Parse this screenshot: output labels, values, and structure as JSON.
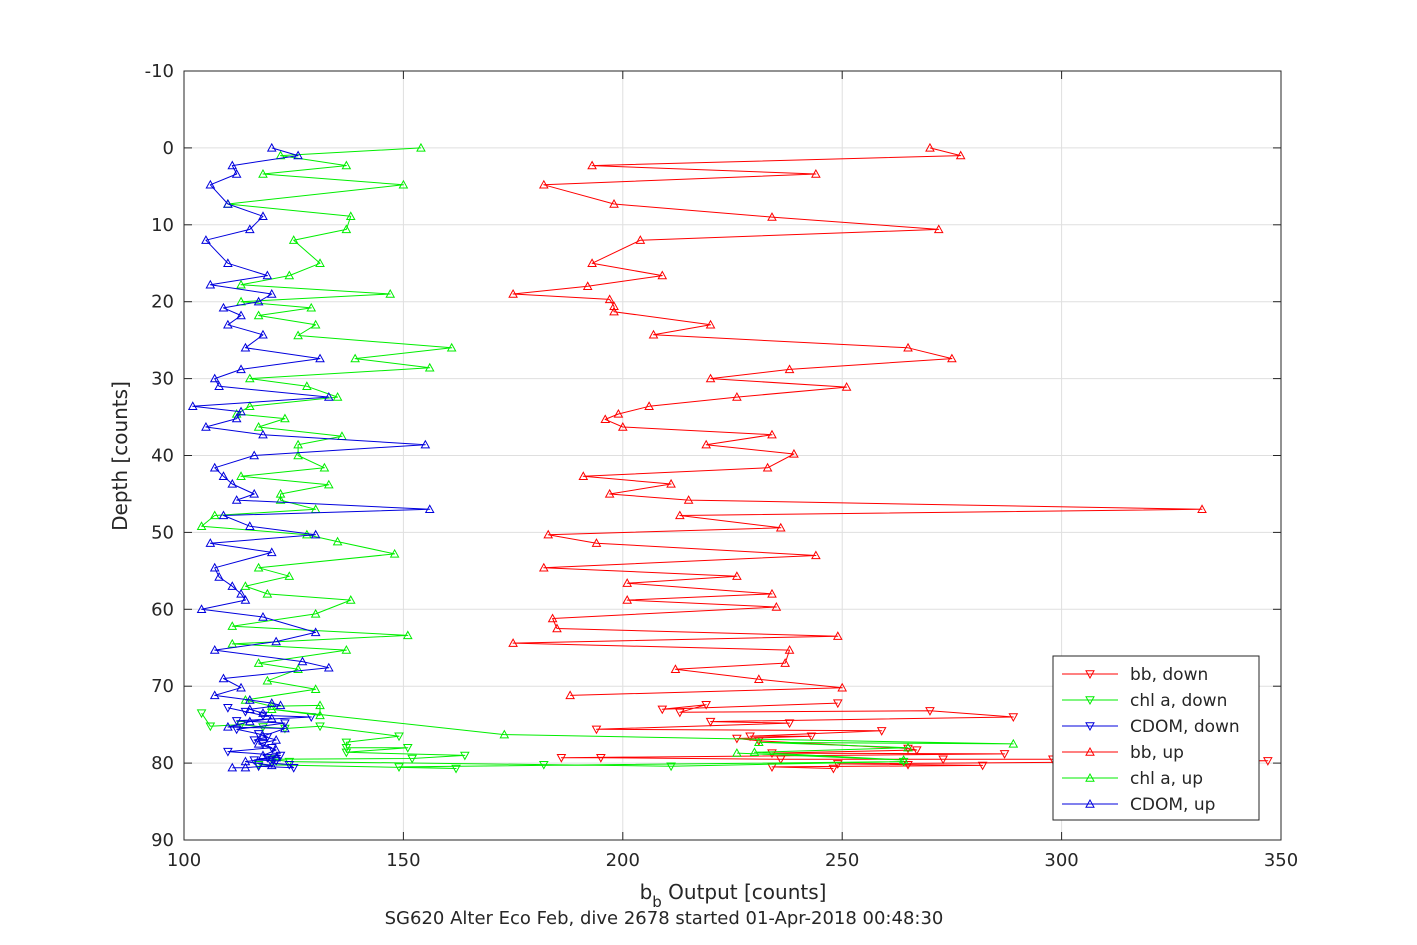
{
  "chart_data": {
    "type": "line",
    "xlabel_main": "b",
    "xlabel_sub": "b",
    "xlabel_rest": " Output [counts]",
    "ylabel": "Depth [counts]",
    "caption": "SG620 Alter Eco Feb, dive 2678 started 01-Apr-2018 00:48:30",
    "xlim": [
      100,
      350
    ],
    "ylim": [
      -10,
      90
    ],
    "y_reversed": true,
    "xticks": [
      100,
      150,
      200,
      250,
      300,
      350
    ],
    "yticks": [
      -10,
      0,
      10,
      20,
      30,
      40,
      50,
      60,
      70,
      80,
      90
    ],
    "grid": true,
    "legend_position": "bottom-right",
    "series": [
      {
        "name": "bb, down",
        "color": "#ff0000",
        "marker": "triangle-down",
        "points": [
          [
            249,
            72.2
          ],
          [
            209,
            73
          ],
          [
            219,
            72.4
          ],
          [
            213,
            73.4
          ],
          [
            270,
            73.2
          ],
          [
            289,
            74
          ],
          [
            220,
            74.6
          ],
          [
            238,
            74.8
          ],
          [
            194,
            75.6
          ],
          [
            259,
            75.8
          ],
          [
            229,
            76.5
          ],
          [
            243,
            76.5
          ],
          [
            226,
            76.8
          ],
          [
            231,
            77.1
          ],
          [
            265,
            78.1
          ],
          [
            267,
            78.3
          ],
          [
            234,
            78.7
          ],
          [
            287,
            78.8
          ],
          [
            186,
            79.3
          ],
          [
            195,
            79.3
          ],
          [
            236,
            79.5
          ],
          [
            273,
            79.5
          ],
          [
            298,
            79.5
          ],
          [
            347,
            79.7
          ],
          [
            249,
            80.1
          ],
          [
            265,
            80.2
          ],
          [
            282,
            80.3
          ],
          [
            234,
            80.5
          ],
          [
            248,
            80.7
          ]
        ]
      },
      {
        "name": "chl a, down",
        "color": "#00ee00",
        "marker": "triangle-down",
        "points": [
          [
            104,
            73.5
          ],
          [
            106,
            75.2
          ],
          [
            113,
            75
          ],
          [
            118,
            75.3
          ],
          [
            123,
            75.5
          ],
          [
            131,
            75.2
          ],
          [
            149,
            76.5
          ],
          [
            137,
            77.3
          ],
          [
            137,
            78
          ],
          [
            151,
            78
          ],
          [
            137,
            78.6
          ],
          [
            164,
            79
          ],
          [
            152,
            79.4
          ],
          [
            120,
            79.5
          ],
          [
            124,
            79.8
          ],
          [
            182,
            80.2
          ],
          [
            211,
            80.4
          ],
          [
            264,
            79.8
          ],
          [
            149,
            80.5
          ],
          [
            162,
            80.7
          ],
          [
            117,
            80.2
          ]
        ]
      },
      {
        "name": "CDOM, down",
        "color": "#0000dd",
        "marker": "triangle-down",
        "points": [
          [
            110,
            72.8
          ],
          [
            114,
            73.3
          ],
          [
            118,
            73.8
          ],
          [
            129,
            74
          ],
          [
            112,
            74.5
          ],
          [
            123,
            74.8
          ],
          [
            112,
            75.6
          ],
          [
            117,
            76.2
          ],
          [
            119,
            76.6
          ],
          [
            116,
            77
          ],
          [
            118,
            77.5
          ],
          [
            120,
            78
          ],
          [
            110,
            78.5
          ],
          [
            122,
            79
          ],
          [
            119,
            79.3
          ],
          [
            116,
            79.6
          ],
          [
            121,
            79.7
          ],
          [
            120,
            80
          ],
          [
            124,
            80.2
          ],
          [
            125,
            80.6
          ],
          [
            117,
            80.4
          ]
        ]
      },
      {
        "name": "bb, up",
        "color": "#ff0000",
        "marker": "triangle-up",
        "points": [
          [
            270,
            0
          ],
          [
            277,
            1
          ],
          [
            193,
            2.3
          ],
          [
            244,
            3.4
          ],
          [
            182,
            4.8
          ],
          [
            198,
            7.3
          ],
          [
            234,
            9
          ],
          [
            272,
            10.6
          ],
          [
            204,
            12
          ],
          [
            193,
            15
          ],
          [
            209,
            16.6
          ],
          [
            192,
            18
          ],
          [
            175,
            19
          ],
          [
            197,
            19.7
          ],
          [
            198,
            20.6
          ],
          [
            198,
            21.3
          ],
          [
            220,
            23
          ],
          [
            207,
            24.3
          ],
          [
            265,
            26
          ],
          [
            275,
            27.4
          ],
          [
            238,
            28.8
          ],
          [
            220,
            30
          ],
          [
            251,
            31.1
          ],
          [
            226,
            32.4
          ],
          [
            206,
            33.6
          ],
          [
            199,
            34.6
          ],
          [
            196,
            35.3
          ],
          [
            200,
            36.3
          ],
          [
            234,
            37.3
          ],
          [
            219,
            38.6
          ],
          [
            239,
            39.8
          ],
          [
            233,
            41.6
          ],
          [
            191,
            42.7
          ],
          [
            211,
            43.7
          ],
          [
            197,
            45
          ],
          [
            215,
            45.8
          ],
          [
            332,
            47
          ],
          [
            213,
            47.8
          ],
          [
            236,
            49.4
          ],
          [
            183,
            50.3
          ],
          [
            194,
            51.4
          ],
          [
            244,
            53
          ],
          [
            182,
            54.6
          ],
          [
            226,
            55.7
          ],
          [
            201,
            56.6
          ],
          [
            234,
            58
          ],
          [
            201,
            58.8
          ],
          [
            235,
            59.7
          ],
          [
            184,
            61.2
          ],
          [
            185,
            62.5
          ],
          [
            249,
            63.5
          ],
          [
            175,
            64.4
          ],
          [
            238,
            65.3
          ],
          [
            237,
            67
          ],
          [
            212,
            67.8
          ],
          [
            231,
            69.1
          ],
          [
            250,
            70.2
          ],
          [
            188,
            71.2
          ]
        ]
      },
      {
        "name": "chl a, up",
        "color": "#00ee00",
        "marker": "triangle-up",
        "points": [
          [
            154,
            0
          ],
          [
            122,
            1
          ],
          [
            137,
            2.3
          ],
          [
            118,
            3.4
          ],
          [
            150,
            4.8
          ],
          [
            110,
            7.3
          ],
          [
            138,
            8.9
          ],
          [
            137,
            10.6
          ],
          [
            125,
            12
          ],
          [
            131,
            15
          ],
          [
            124,
            16.6
          ],
          [
            113,
            17.8
          ],
          [
            147,
            19
          ],
          [
            113,
            20
          ],
          [
            129,
            20.8
          ],
          [
            117,
            21.8
          ],
          [
            130,
            23
          ],
          [
            126,
            24.4
          ],
          [
            161,
            26
          ],
          [
            139,
            27.4
          ],
          [
            156,
            28.6
          ],
          [
            115,
            30
          ],
          [
            128,
            31
          ],
          [
            135,
            32.4
          ],
          [
            115,
            33.6
          ],
          [
            112,
            34.6
          ],
          [
            123,
            35.2
          ],
          [
            117,
            36.3
          ],
          [
            136,
            37.5
          ],
          [
            126,
            38.6
          ],
          [
            126,
            40
          ],
          [
            132,
            41.6
          ],
          [
            113,
            42.7
          ],
          [
            133,
            43.8
          ],
          [
            122,
            45
          ],
          [
            122,
            45.8
          ],
          [
            130,
            47
          ],
          [
            107,
            47.8
          ],
          [
            104,
            49.2
          ],
          [
            128,
            50.3
          ],
          [
            135,
            51.2
          ],
          [
            148,
            52.8
          ],
          [
            117,
            54.6
          ],
          [
            124,
            55.7
          ],
          [
            114,
            57
          ],
          [
            119,
            58
          ],
          [
            138,
            58.8
          ],
          [
            130,
            60.6
          ],
          [
            111,
            62.2
          ],
          [
            151,
            63.4
          ],
          [
            111,
            64.5
          ],
          [
            137,
            65.3
          ],
          [
            117,
            67
          ],
          [
            126,
            67.8
          ],
          [
            119,
            69.3
          ],
          [
            130,
            70.4
          ],
          [
            114,
            71.8
          ],
          [
            120,
            72.6
          ],
          [
            131,
            72.5
          ],
          [
            131,
            73.8
          ],
          [
            120,
            73
          ],
          [
            173,
            76.3
          ],
          [
            289,
            77.5
          ],
          [
            231,
            77.3
          ],
          [
            265,
            78
          ],
          [
            230,
            78.6
          ],
          [
            264,
            79.6
          ],
          [
            226,
            78.7
          ]
        ]
      },
      {
        "name": "CDOM, up",
        "color": "#0000dd",
        "marker": "triangle-up",
        "points": [
          [
            120,
            0
          ],
          [
            126,
            1
          ],
          [
            111,
            2.3
          ],
          [
            112,
            3.4
          ],
          [
            106,
            4.8
          ],
          [
            110,
            7.3
          ],
          [
            118,
            8.9
          ],
          [
            115,
            10.6
          ],
          [
            105,
            12
          ],
          [
            110,
            15
          ],
          [
            119,
            16.6
          ],
          [
            106,
            17.8
          ],
          [
            120,
            19
          ],
          [
            117,
            20
          ],
          [
            109,
            20.8
          ],
          [
            113,
            21.8
          ],
          [
            110,
            23
          ],
          [
            118,
            24.3
          ],
          [
            114,
            26
          ],
          [
            131,
            27.4
          ],
          [
            113,
            28.8
          ],
          [
            107,
            30
          ],
          [
            108,
            31
          ],
          [
            133,
            32.4
          ],
          [
            102,
            33.6
          ],
          [
            113,
            34.3
          ],
          [
            112,
            35.2
          ],
          [
            105,
            36.3
          ],
          [
            118,
            37.3
          ],
          [
            155,
            38.6
          ],
          [
            116,
            40
          ],
          [
            107,
            41.6
          ],
          [
            109,
            42.7
          ],
          [
            111,
            43.7
          ],
          [
            116,
            45
          ],
          [
            112,
            45.8
          ],
          [
            156,
            47
          ],
          [
            109,
            47.8
          ],
          [
            115,
            49.2
          ],
          [
            130,
            50.3
          ],
          [
            106,
            51.4
          ],
          [
            120,
            52.6
          ],
          [
            107,
            54.6
          ],
          [
            108,
            55.8
          ],
          [
            111,
            57
          ],
          [
            113,
            58
          ],
          [
            114,
            58.8
          ],
          [
            104,
            60
          ],
          [
            118,
            61
          ],
          [
            130,
            63
          ],
          [
            121,
            64.2
          ],
          [
            107,
            65.3
          ],
          [
            127,
            66.8
          ],
          [
            133,
            67.6
          ],
          [
            109,
            69
          ],
          [
            113,
            70.2
          ],
          [
            107,
            71.2
          ],
          [
            115,
            71.8
          ],
          [
            120,
            72.2
          ],
          [
            122,
            72.5
          ],
          [
            115,
            73
          ],
          [
            118,
            73.5
          ],
          [
            120,
            74.2
          ],
          [
            115,
            74.6
          ],
          [
            110,
            75.3
          ],
          [
            123,
            75.5
          ],
          [
            118,
            76.5
          ],
          [
            121,
            77
          ],
          [
            117,
            77.5
          ],
          [
            121,
            78.3
          ],
          [
            118,
            79
          ],
          [
            121,
            79.3
          ],
          [
            114,
            79.8
          ],
          [
            120,
            80.3
          ],
          [
            114,
            80.6
          ],
          [
            111,
            80.6
          ]
        ]
      }
    ]
  }
}
